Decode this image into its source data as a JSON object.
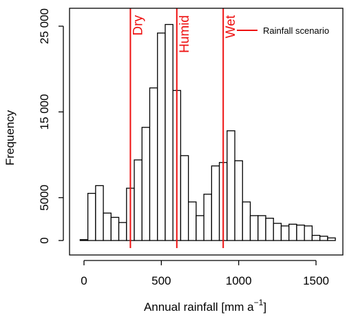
{
  "chart_data": {
    "type": "bar",
    "xlabel": "Annual rainfall [mm a",
    "xlabel_sup": "−1",
    "xlabel_end": "]",
    "ylabel": "Frequency",
    "xlim": [
      -50,
      1650
    ],
    "ylim": [
      0,
      26000
    ],
    "x_ticks": [
      0,
      500,
      1000,
      1500
    ],
    "x_tick_labels": [
      "0",
      "500",
      "1000",
      "1500"
    ],
    "y_ticks": [
      0,
      5000,
      15000,
      25000
    ],
    "y_tick_labels": [
      "0",
      "5000",
      "15 000",
      "25 000"
    ],
    "bins": [
      {
        "start": -25,
        "end": 25,
        "count": 100
      },
      {
        "start": 25,
        "end": 75,
        "count": 5500
      },
      {
        "start": 75,
        "end": 125,
        "count": 6400
      },
      {
        "start": 125,
        "end": 175,
        "count": 3200
      },
      {
        "start": 175,
        "end": 225,
        "count": 2700
      },
      {
        "start": 225,
        "end": 275,
        "count": 2100
      },
      {
        "start": 275,
        "end": 325,
        "count": 6100
      },
      {
        "start": 325,
        "end": 375,
        "count": 9400
      },
      {
        "start": 375,
        "end": 425,
        "count": 13200
      },
      {
        "start": 425,
        "end": 475,
        "count": 17800
      },
      {
        "start": 475,
        "end": 525,
        "count": 24200
      },
      {
        "start": 525,
        "end": 575,
        "count": 25200
      },
      {
        "start": 575,
        "end": 625,
        "count": 17500
      },
      {
        "start": 625,
        "end": 675,
        "count": 9900
      },
      {
        "start": 675,
        "end": 725,
        "count": 4500
      },
      {
        "start": 725,
        "end": 775,
        "count": 2900
      },
      {
        "start": 775,
        "end": 825,
        "count": 5400
      },
      {
        "start": 825,
        "end": 875,
        "count": 8700
      },
      {
        "start": 875,
        "end": 925,
        "count": 9100
      },
      {
        "start": 925,
        "end": 975,
        "count": 12800
      },
      {
        "start": 975,
        "end": 1025,
        "count": 9300
      },
      {
        "start": 1025,
        "end": 1075,
        "count": 4500
      },
      {
        "start": 1075,
        "end": 1125,
        "count": 2900
      },
      {
        "start": 1125,
        "end": 1175,
        "count": 2900
      },
      {
        "start": 1175,
        "end": 1225,
        "count": 2600
      },
      {
        "start": 1225,
        "end": 1275,
        "count": 2000
      },
      {
        "start": 1275,
        "end": 1325,
        "count": 1700
      },
      {
        "start": 1325,
        "end": 1375,
        "count": 1900
      },
      {
        "start": 1375,
        "end": 1425,
        "count": 1800
      },
      {
        "start": 1425,
        "end": 1475,
        "count": 1700
      },
      {
        "start": 1475,
        "end": 1525,
        "count": 600
      },
      {
        "start": 1525,
        "end": 1575,
        "count": 500
      },
      {
        "start": 1575,
        "end": 1625,
        "count": 300
      }
    ],
    "scenarios": [
      {
        "label": "Dry",
        "x": 300
      },
      {
        "label": "Humid",
        "x": 600
      },
      {
        "label": "Wet",
        "x": 900
      }
    ],
    "scenario_color": "#ee1111",
    "bar_fill": "#ffffff",
    "bar_stroke": "#000000",
    "legend": {
      "label": "Rainfall scenario",
      "position": "top-right"
    }
  }
}
